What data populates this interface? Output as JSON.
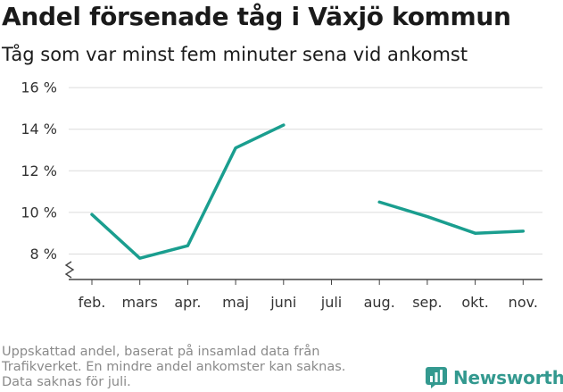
{
  "title": "Andel försenade tåg i Växjö kommun",
  "subtitle": "Tåg som var minst fem minuter sena vid ankomst",
  "footnote": [
    "Uppskattad andel, baserat på insamlad data från",
    "Trafikverket. En mindre andel ankomster kan saknas.",
    "Data saknas för juli."
  ],
  "brand": {
    "name": "Newsworthy",
    "icon": "newsworthy-logo-icon",
    "color": "#33998f"
  },
  "chart_data": {
    "type": "line",
    "title": "Andel försenade tåg i Växjö kommun",
    "subtitle": "Tåg som var minst fem minuter sena vid ankomst",
    "categories": [
      "feb.",
      "mars",
      "apr.",
      "maj",
      "juni",
      "juli",
      "aug.",
      "sep.",
      "okt.",
      "nov."
    ],
    "series": [
      {
        "values": [
          9.9,
          7.8,
          8.4,
          13.1,
          14.2,
          null,
          10.5,
          9.8,
          9.0,
          9.1
        ],
        "color": "#1a9e8f"
      }
    ],
    "yticks": [
      8,
      10,
      12,
      14,
      16
    ],
    "ytick_labels": [
      "8 %",
      "10 %",
      "12 %",
      "14 %",
      "16 %"
    ],
    "ylim": [
      7,
      16
    ],
    "axis_break": true,
    "grid": true,
    "xlabel": "",
    "ylabel": ""
  }
}
